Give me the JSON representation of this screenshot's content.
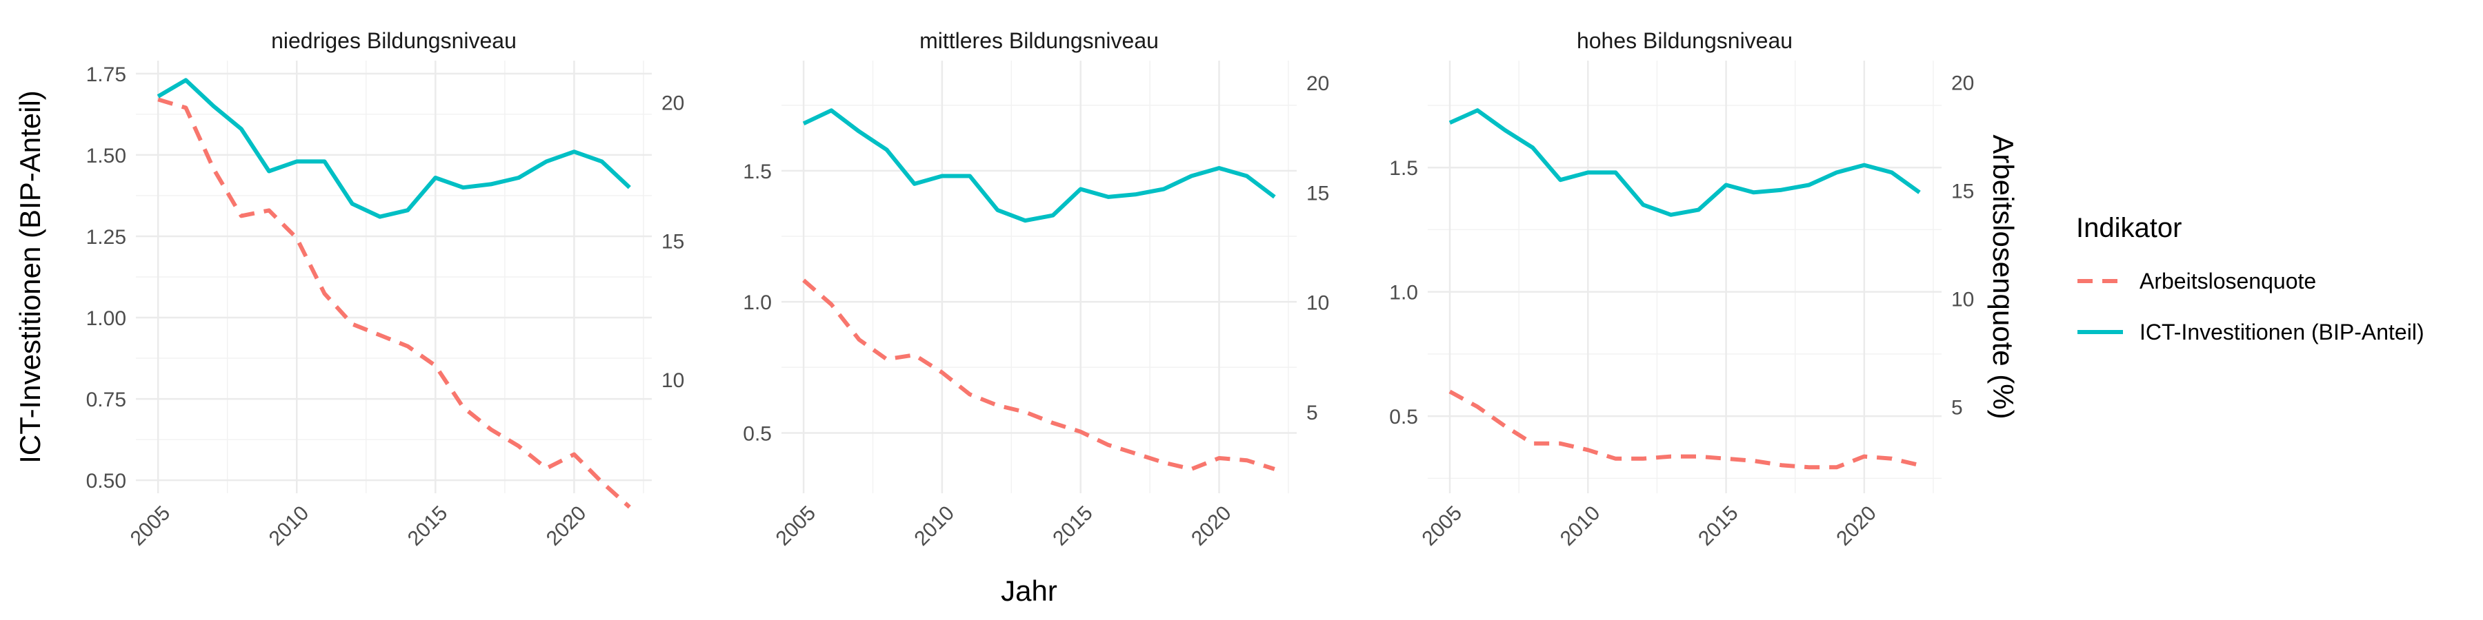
{
  "chart_data": {
    "type": "line",
    "x": [
      2005,
      2006,
      2007,
      2008,
      2009,
      2010,
      2011,
      2012,
      2013,
      2014,
      2015,
      2016,
      2017,
      2018,
      2019,
      2020,
      2021,
      2022
    ],
    "xlabel": "Jahr",
    "ylabel": "ICT-Investitionen (BIP-Anteil)",
    "y2label": "Arbeitslosenquote (%)",
    "xticks": [
      "2005",
      "2010",
      "2015",
      "2020"
    ],
    "xlim": [
      2004.2,
      2022.8
    ],
    "ylim2": [
      0,
      21
    ],
    "legend": {
      "title": "Indikator",
      "position": "right",
      "entries": [
        {
          "label": "Arbeitslosenquote",
          "color": "#F8766D",
          "style": "dashed"
        },
        {
          "label": "ICT-Investitionen (BIP-Anteil)",
          "color": "#00BFC4",
          "style": "solid"
        }
      ]
    },
    "panels": [
      {
        "title": "niedriges Bildungsniveau",
        "ylim": [
          0.46,
          1.79
        ],
        "yticks": [
          "0.50",
          "0.75",
          "1.00",
          "1.25",
          "1.50",
          "1.75"
        ],
        "y2lim": [
          5.9,
          21.5
        ],
        "y2ticks": [
          "10",
          "15",
          "20"
        ],
        "series": [
          {
            "name": "Arbeitslosenquote",
            "axis": "right",
            "values": [
              20.1,
              19.8,
              17.6,
              15.9,
              16.1,
              15.1,
              13.1,
              12.0,
              11.6,
              11.2,
              10.5,
              9.0,
              8.2,
              7.6,
              6.8,
              7.3,
              6.3,
              5.4
            ]
          },
          {
            "name": "ICT-Investitionen (BIP-Anteil)",
            "axis": "left",
            "values": [
              1.68,
              1.73,
              1.65,
              1.58,
              1.45,
              1.48,
              1.48,
              1.35,
              1.31,
              1.33,
              1.43,
              1.4,
              1.41,
              1.43,
              1.48,
              1.51,
              1.48,
              1.4
            ]
          }
        ]
      },
      {
        "title": "mittleres Bildungsniveau",
        "ylim": [
          0.27,
          1.92
        ],
        "yticks": [
          "0.5",
          "1.0",
          "1.5"
        ],
        "y2lim": [
          1.3,
          21.0
        ],
        "y2ticks": [
          "5",
          "10",
          "15",
          "20"
        ],
        "series": [
          {
            "name": "Arbeitslosenquote",
            "axis": "right",
            "values": [
              11.0,
              9.9,
              8.3,
              7.4,
              7.6,
              6.8,
              5.8,
              5.3,
              5.0,
              4.5,
              4.1,
              3.5,
              3.1,
              2.7,
              2.4,
              2.9,
              2.8,
              2.4
            ]
          },
          {
            "name": "ICT-Investitionen (BIP-Anteil)",
            "axis": "left",
            "values": [
              1.68,
              1.73,
              1.65,
              1.58,
              1.45,
              1.48,
              1.48,
              1.35,
              1.31,
              1.33,
              1.43,
              1.4,
              1.41,
              1.43,
              1.48,
              1.51,
              1.48,
              1.4
            ]
          }
        ]
      },
      {
        "title": "hohes Bildungsniveau",
        "ylim": [
          0.19,
          1.93
        ],
        "yticks": [
          "0.5",
          "1.0",
          "1.5"
        ],
        "y2lim": [
          1.0,
          21.0
        ],
        "y2ticks": [
          "5",
          "10",
          "15",
          "20"
        ],
        "series": [
          {
            "name": "Arbeitslosenquote",
            "axis": "right",
            "values": [
              5.7,
              5.0,
              4.1,
              3.3,
              3.3,
              3.0,
              2.6,
              2.6,
              2.7,
              2.7,
              2.6,
              2.5,
              2.3,
              2.2,
              2.2,
              2.7,
              2.6,
              2.3
            ]
          },
          {
            "name": "ICT-Investitionen (BIP-Anteil)",
            "axis": "left",
            "values": [
              1.68,
              1.73,
              1.65,
              1.58,
              1.45,
              1.48,
              1.48,
              1.35,
              1.31,
              1.33,
              1.43,
              1.4,
              1.41,
              1.43,
              1.48,
              1.51,
              1.48,
              1.4
            ]
          }
        ]
      }
    ],
    "grid": true
  }
}
